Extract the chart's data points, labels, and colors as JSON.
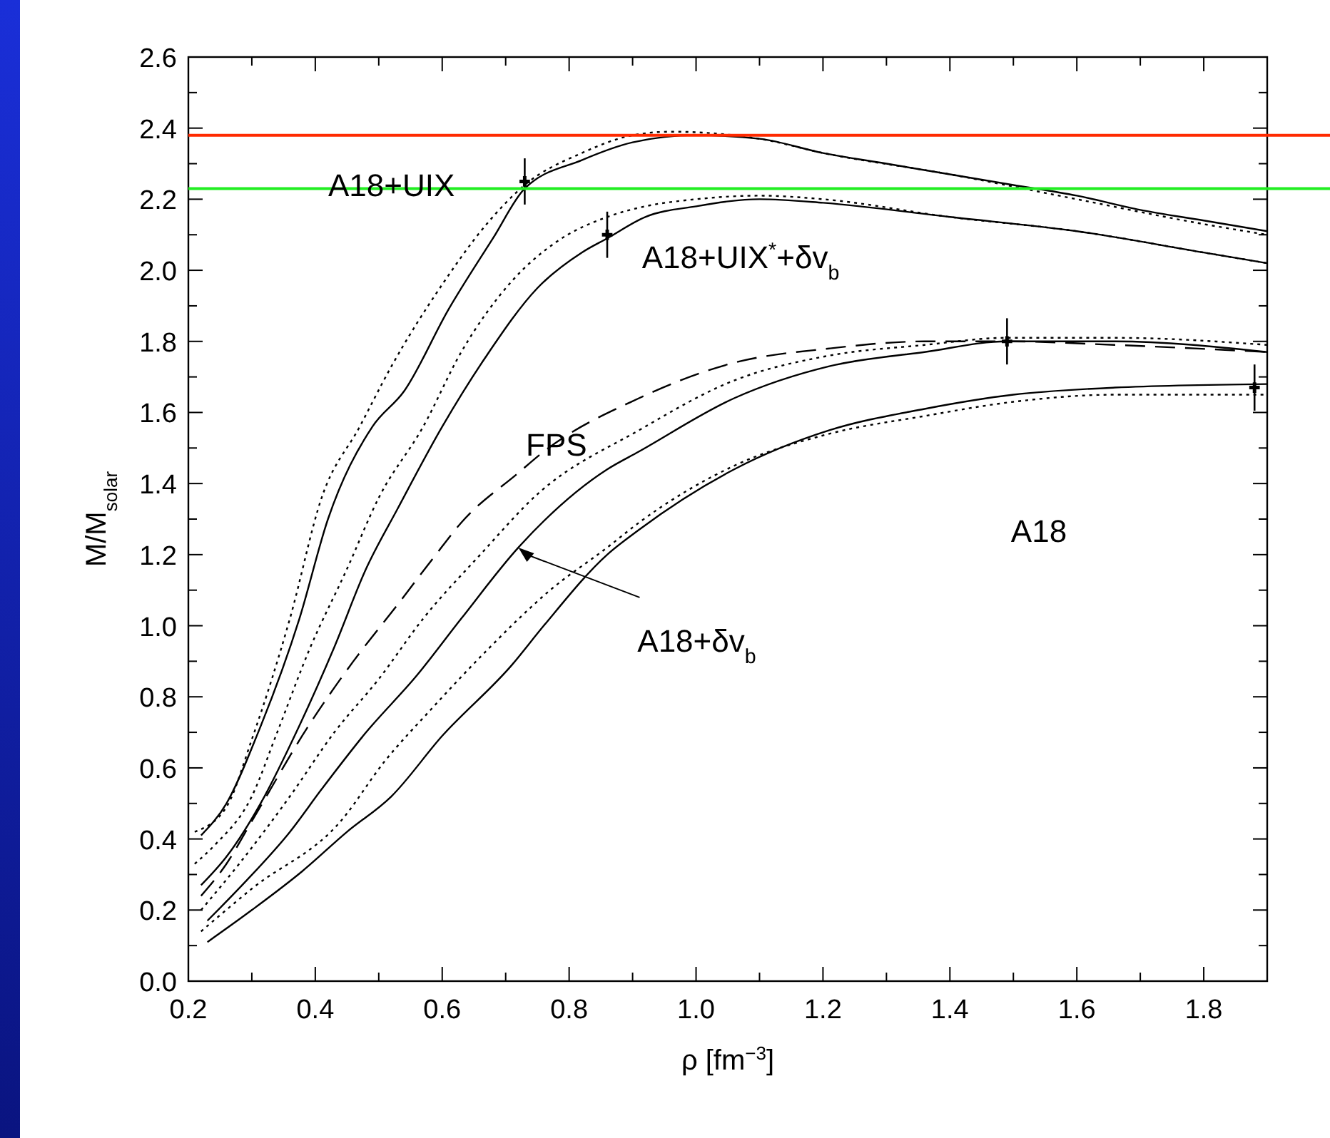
{
  "chart_data": {
    "type": "line",
    "xlabel": "ρ [fm$^{−3}$]",
    "ylabel": "M/M$_{solar}$",
    "xlim": [
      0.2,
      1.9
    ],
    "ylim": [
      0,
      2.6
    ],
    "xticks": [
      0.2,
      {
        "value": 0.3,
        "label": null
      },
      0.4,
      {
        "value": 0.5,
        "label": null
      },
      0.6,
      {
        "value": 0.7,
        "label": null
      },
      0.8,
      {
        "value": 0.9,
        "label": null
      },
      {
        "value": 1.0,
        "label": "1.0"
      },
      {
        "value": 1.1,
        "label": null
      },
      1.2,
      {
        "value": 1.3,
        "label": null
      },
      1.4,
      {
        "value": 1.5,
        "label": null
      },
      1.6,
      {
        "value": 1.7,
        "label": null
      },
      1.8
    ],
    "yticks": [
      {
        "value": 0,
        "label": "0.0"
      },
      {
        "value": 0.1,
        "label": null
      },
      0.2,
      {
        "value": 0.3,
        "label": null
      },
      0.4,
      {
        "value": 0.5,
        "label": null
      },
      0.6,
      {
        "value": 0.7,
        "label": null
      },
      0.8,
      {
        "value": 0.9,
        "label": null
      },
      {
        "value": 1.0,
        "label": "1.0"
      },
      {
        "value": 1.1,
        "label": null
      },
      1.2,
      {
        "value": 1.3,
        "label": null
      },
      1.4,
      {
        "value": 1.5,
        "label": null
      },
      1.6,
      {
        "value": 1.7,
        "label": null
      },
      1.8,
      {
        "value": 1.9,
        "label": null
      },
      {
        "value": 2.0,
        "label": "2.0"
      },
      {
        "value": 2.1,
        "label": null
      },
      2.2,
      {
        "value": 2.3,
        "label": null
      },
      2.4,
      {
        "value": 2.5,
        "label": null
      },
      2.6
    ],
    "series": [
      {
        "line_style": "solid",
        "color": "#000000",
        "x": [
          0.22,
          0.26,
          0.31,
          0.375,
          0.42,
          0.49,
          0.54,
          0.61,
          0.68,
          0.73,
          0.82,
          0.9,
          1.0,
          1.1,
          1.2,
          1.3,
          1.4,
          1.5,
          1.6,
          1.7,
          1.8,
          1.9
        ],
        "values": [
          0.41,
          0.5,
          0.7,
          1.02,
          1.3,
          1.56,
          1.66,
          1.89,
          2.09,
          2.23,
          2.31,
          2.36,
          2.38,
          2.37,
          2.33,
          2.3,
          2.27,
          2.24,
          2.21,
          2.17,
          2.14,
          2.11
        ]
      },
      {
        "line_style": "dotted",
        "color": "#000000",
        "x": [
          0.21,
          0.26,
          0.3,
          0.36,
          0.41,
          0.47,
          0.52,
          0.6,
          0.67,
          0.73,
          0.82,
          0.9,
          0.96,
          1.1,
          1.2,
          1.4,
          1.6,
          1.8,
          1.9
        ],
        "values": [
          0.42,
          0.49,
          0.68,
          1.02,
          1.36,
          1.56,
          1.73,
          1.96,
          2.13,
          2.24,
          2.33,
          2.38,
          2.39,
          2.37,
          2.33,
          2.27,
          2.2,
          2.13,
          2.1
        ]
      },
      {
        "line_style": "solid",
        "color": "#000000",
        "x": [
          0.22,
          0.26,
          0.32,
          0.37,
          0.43,
          0.48,
          0.53,
          0.6,
          0.67,
          0.75,
          0.82,
          0.86,
          0.92,
          1.0,
          1.1,
          1.2,
          1.4,
          1.6,
          1.8,
          1.9
        ],
        "values": [
          0.27,
          0.35,
          0.52,
          0.7,
          0.94,
          1.16,
          1.33,
          1.56,
          1.76,
          1.95,
          2.05,
          2.09,
          2.15,
          2.18,
          2.2,
          2.19,
          2.15,
          2.11,
          2.05,
          2.02
        ]
      },
      {
        "line_style": "dotted",
        "color": "#000000",
        "x": [
          0.21,
          0.24,
          0.3,
          0.34,
          0.39,
          0.45,
          0.5,
          0.57,
          0.63,
          0.71,
          0.78,
          0.86,
          0.92,
          1.0,
          1.1,
          1.2,
          1.4,
          1.6,
          1.8,
          1.9
        ],
        "values": [
          0.33,
          0.38,
          0.52,
          0.7,
          0.93,
          1.16,
          1.36,
          1.56,
          1.77,
          1.97,
          2.08,
          2.15,
          2.18,
          2.2,
          2.21,
          2.2,
          2.15,
          2.11,
          2.05,
          2.02
        ]
      },
      {
        "line_style": "dashed",
        "color": "#000000",
        "x": [
          0.22,
          0.26,
          0.3,
          0.39,
          0.42,
          0.46,
          0.53,
          0.59,
          0.63,
          0.72,
          0.76,
          0.91,
          1.06,
          1.21,
          1.36,
          1.49,
          1.66,
          1.9
        ],
        "values": [
          0.24,
          0.33,
          0.45,
          0.72,
          0.8,
          0.9,
          1.06,
          1.2,
          1.29,
          1.43,
          1.49,
          1.64,
          1.74,
          1.78,
          1.8,
          1.8,
          1.79,
          1.77
        ]
      },
      {
        "line_style": "dotted",
        "color": "#000000",
        "x": [
          0.22,
          0.28,
          0.36,
          0.43,
          0.5,
          0.57,
          0.66,
          0.75,
          0.91,
          1.06,
          1.21,
          1.36,
          1.49,
          1.66,
          1.9
        ],
        "values": [
          0.2,
          0.33,
          0.52,
          0.7,
          0.85,
          1.02,
          1.2,
          1.37,
          1.55,
          1.69,
          1.76,
          1.79,
          1.81,
          1.81,
          1.79
        ]
      },
      {
        "line_style": "solid",
        "color": "#000000",
        "x": [
          0.23,
          0.29,
          0.36,
          0.41,
          0.48,
          0.56,
          0.63,
          0.72,
          0.86,
          0.91,
          1.06,
          1.21,
          1.36,
          1.49,
          1.66,
          1.9
        ],
        "values": [
          0.17,
          0.28,
          0.42,
          0.54,
          0.7,
          0.86,
          1.02,
          1.22,
          1.44,
          1.49,
          1.64,
          1.73,
          1.77,
          1.8,
          1.8,
          1.77
        ]
      },
      {
        "line_style": "dotted",
        "color": "#000000",
        "x": [
          0.22,
          0.3,
          0.44,
          0.51,
          0.58,
          0.67,
          0.77,
          0.86,
          0.91,
          1.06,
          1.21,
          1.36,
          1.5,
          1.66,
          1.9
        ],
        "values": [
          0.14,
          0.26,
          0.45,
          0.62,
          0.76,
          0.93,
          1.1,
          1.22,
          1.29,
          1.45,
          1.54,
          1.59,
          1.63,
          1.65,
          1.65
        ]
      },
      {
        "line_style": "solid",
        "color": "#000000",
        "x": [
          0.23,
          0.3,
          0.38,
          0.45,
          0.52,
          0.6,
          0.71,
          0.76,
          0.86,
          0.91,
          1.06,
          1.21,
          1.36,
          1.5,
          1.66,
          1.9
        ],
        "values": [
          0.11,
          0.2,
          0.31,
          0.42,
          0.52,
          0.69,
          0.89,
          1.0,
          1.2,
          1.27,
          1.44,
          1.55,
          1.61,
          1.65,
          1.67,
          1.68
        ]
      },
      {
        "type": "scatter",
        "marker": "cross",
        "color": "#000000",
        "x": [
          0.73,
          0.86,
          1.49,
          1.88
        ],
        "values": [
          2.25,
          2.1,
          1.8,
          1.67
        ],
        "errors": [
          0.065,
          0.065,
          0.065,
          0.065
        ]
      }
    ],
    "ref_lines": [
      {
        "axis": "y",
        "value": 2.38,
        "color": "#ff2a00"
      },
      {
        "axis": "y",
        "value": 2.23,
        "color": "#22ee22"
      }
    ],
    "annotations": [
      {
        "text": "A18+UIX",
        "x": 0.52,
        "y": 2.24
      },
      "A18+UIX$^{*}$+δv$_{b}$",
      {
        "text": "FPS",
        "x": 0.78,
        "y": 1.51
      },
      "A18",
      {
        "text": "A18+δv$_{b}$",
        "x": 0.72,
        "y": 1.22
      }
    ]
  }
}
